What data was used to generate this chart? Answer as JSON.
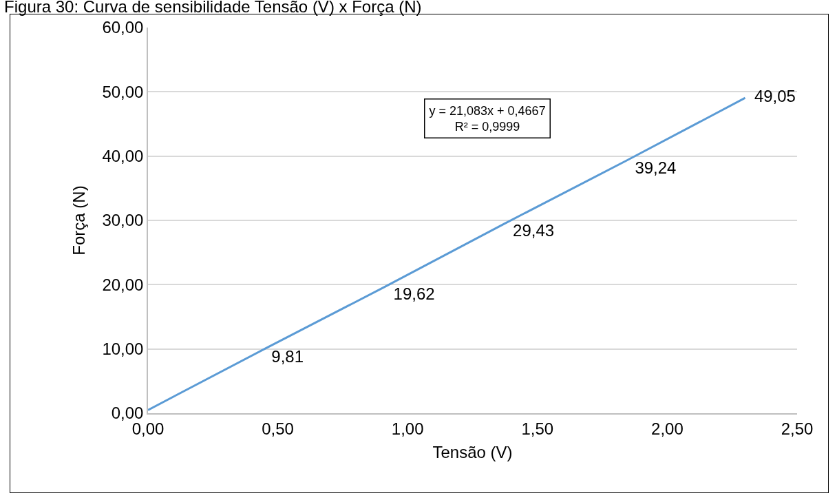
{
  "chart_data": {
    "type": "line",
    "title": "Figura 30: Curva de sensibilidade Tensão (V) x Força (N)",
    "xlabel": "Tensão (V)",
    "ylabel": "Força (N)",
    "x": [
      0,
      0.44,
      0.91,
      1.37,
      1.84,
      2.3
    ],
    "series": [
      {
        "color": "#5b9bd5",
        "values": [
          0.5,
          9.81,
          19.62,
          29.43,
          39.24,
          49.05
        ],
        "value_labels": [
          null,
          "9,81",
          "19,62",
          "29,43",
          "39,24",
          "49,05"
        ]
      }
    ],
    "annotations": [
      "y = 21,083x + 0,4667\nR² = 0,9999"
    ],
    "xlim": [
      0,
      2.5
    ],
    "xticks": [
      {
        "value": 0,
        "label": "0,00"
      },
      {
        "value": 0.5,
        "label": "0,50"
      },
      {
        "value": 1,
        "label": "1,00"
      },
      {
        "value": 1.5,
        "label": "1,50"
      },
      {
        "value": 2,
        "label": "2,00"
      },
      {
        "value": 2.5,
        "label": "2,50"
      }
    ],
    "ylim": [
      0,
      60
    ],
    "yticks": [
      {
        "value": 0,
        "label": "0,00"
      },
      {
        "value": 10,
        "label": "10,00"
      },
      {
        "value": 20,
        "label": "20,00"
      },
      {
        "value": 30,
        "label": "30,00"
      },
      {
        "value": 40,
        "label": "40,00"
      },
      {
        "value": 50,
        "label": "50,00"
      },
      {
        "value": 60,
        "label": "60,00"
      }
    ],
    "grid": "y",
    "marker": "none",
    "line_style": "solid"
  }
}
